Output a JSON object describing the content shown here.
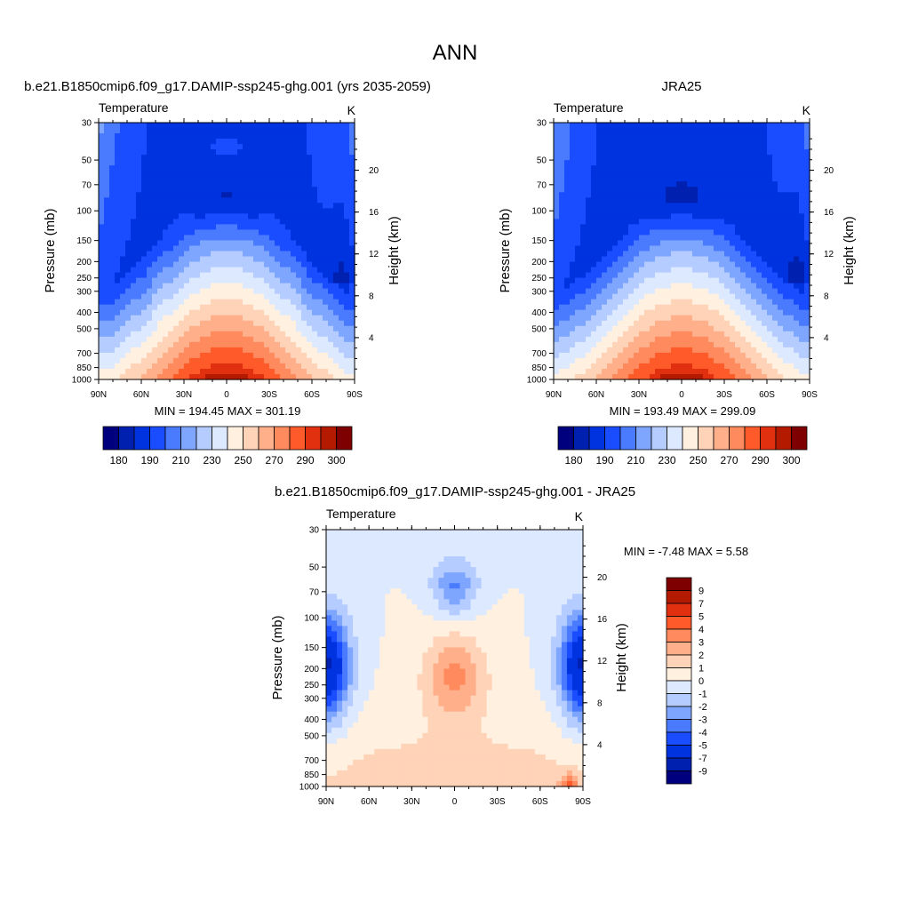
{
  "figure": {
    "title": "ANN"
  },
  "palette": {
    "abs": [
      "#00007f",
      "#0020b0",
      "#0033e0",
      "#1a4dff",
      "#4a7bff",
      "#7fa6ff",
      "#b4ccff",
      "#dde9ff",
      "#fff0e0",
      "#ffd3b8",
      "#ffaf8a",
      "#ff8a5e",
      "#ff5a2a",
      "#e03010",
      "#b41a00",
      "#7f0000"
    ],
    "diff": [
      "#00007f",
      "#0020b0",
      "#0033e0",
      "#1a4dff",
      "#4a7bff",
      "#7fa6ff",
      "#b4ccff",
      "#dde9ff",
      "#fff0e0",
      "#ffd3b8",
      "#ffaf8a",
      "#ff8a5e",
      "#ff5a2a",
      "#e03010",
      "#b41a00",
      "#7f0000"
    ]
  },
  "chart_data": [
    {
      "id": "p1",
      "type": "heatmap",
      "title": "b.e21.B1850cmip6.f09_g17.DAMIP-ssp245-ghg.001 (yrs 2035-2059)",
      "left_label": "Temperature",
      "units_label": "K",
      "ylabel": "Pressure (mb)",
      "y2label": "Height (km)",
      "xticks": [
        "90N",
        "60N",
        "30N",
        "0",
        "30S",
        "60S",
        "90S"
      ],
      "yticks": [
        30,
        50,
        70,
        100,
        150,
        200,
        250,
        300,
        400,
        500,
        700,
        850,
        1000
      ],
      "y2ticks": [
        4,
        8,
        12,
        16,
        20
      ],
      "ylim": [
        1000,
        30
      ],
      "minmax": "MIN = 194.45  MAX = 301.19",
      "colorbar_labels": [
        "180",
        "190",
        "210",
        "230",
        "250",
        "270",
        "290",
        "300"
      ],
      "model": "abs",
      "variant": "model"
    },
    {
      "id": "p2",
      "type": "heatmap",
      "title": "JRA25",
      "left_label": "Temperature",
      "units_label": "K",
      "ylabel": "Pressure (mb)",
      "y2label": "Height (km)",
      "xticks": [
        "90N",
        "60N",
        "30N",
        "0",
        "30S",
        "60S",
        "90S"
      ],
      "yticks": [
        30,
        50,
        70,
        100,
        150,
        200,
        250,
        300,
        400,
        500,
        700,
        850,
        1000
      ],
      "y2ticks": [
        4,
        8,
        12,
        16,
        20
      ],
      "ylim": [
        1000,
        30
      ],
      "minmax": "MIN = 193.49  MAX = 299.09",
      "colorbar_labels": [
        "180",
        "190",
        "210",
        "230",
        "250",
        "270",
        "290",
        "300"
      ],
      "model": "abs",
      "variant": "obs"
    },
    {
      "id": "p3",
      "type": "heatmap",
      "title": "b.e21.B1850cmip6.f09_g17.DAMIP-ssp245-ghg.001 - JRA25",
      "left_label": "Temperature",
      "units_label": "K",
      "ylabel": "Pressure (mb)",
      "y2label": "Height (km)",
      "xticks": [
        "90N",
        "60N",
        "30N",
        "0",
        "30S",
        "60S",
        "90S"
      ],
      "yticks": [
        30,
        50,
        70,
        100,
        150,
        200,
        250,
        300,
        400,
        500,
        700,
        850,
        1000
      ],
      "y2ticks": [
        4,
        8,
        12,
        16,
        20
      ],
      "ylim": [
        1000,
        30
      ],
      "minmax": "MIN =  -7.48  MAX =   5.58",
      "colorbar_labels": [
        "9",
        "7",
        "5",
        "4",
        "3",
        "2",
        "1",
        "0",
        "-1",
        "-2",
        "-3",
        "-4",
        "-5",
        "-7",
        "-9"
      ],
      "model": "diff"
    }
  ]
}
